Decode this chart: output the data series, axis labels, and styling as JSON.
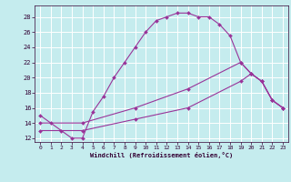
{
  "xlabel": "Windchill (Refroidissement éolien,°C)",
  "bg_color": "#c5ecee",
  "grid_color": "#ffffff",
  "line_color": "#993399",
  "xlim": [
    -0.5,
    23.5
  ],
  "ylim": [
    11.5,
    29.5
  ],
  "yticks": [
    12,
    14,
    16,
    18,
    20,
    22,
    24,
    26,
    28
  ],
  "xticks": [
    0,
    1,
    2,
    3,
    4,
    5,
    6,
    7,
    8,
    9,
    10,
    11,
    12,
    13,
    14,
    15,
    16,
    17,
    18,
    19,
    20,
    21,
    22,
    23
  ],
  "series1_x": [
    0,
    1,
    2,
    3,
    4,
    5,
    6,
    7,
    8,
    9,
    10,
    11,
    12,
    13,
    14,
    15,
    16,
    17,
    18,
    19,
    20,
    21,
    22,
    23
  ],
  "series1_y": [
    15,
    14,
    13,
    12,
    12,
    15.5,
    17.5,
    20,
    22,
    24,
    26,
    27.5,
    28,
    28.5,
    28.5,
    28,
    28,
    27,
    25.5,
    22,
    20.5,
    19.5,
    17,
    16
  ],
  "series2_x": [
    0,
    4,
    9,
    14,
    19,
    20,
    21,
    22,
    23
  ],
  "series2_y": [
    14,
    14,
    16,
    18.5,
    22,
    20.5,
    19.5,
    17,
    16
  ],
  "series3_x": [
    0,
    4,
    9,
    14,
    19,
    20,
    21,
    22,
    23
  ],
  "series3_y": [
    13,
    13,
    14.5,
    16,
    19.5,
    20.5,
    19.5,
    17,
    16
  ]
}
